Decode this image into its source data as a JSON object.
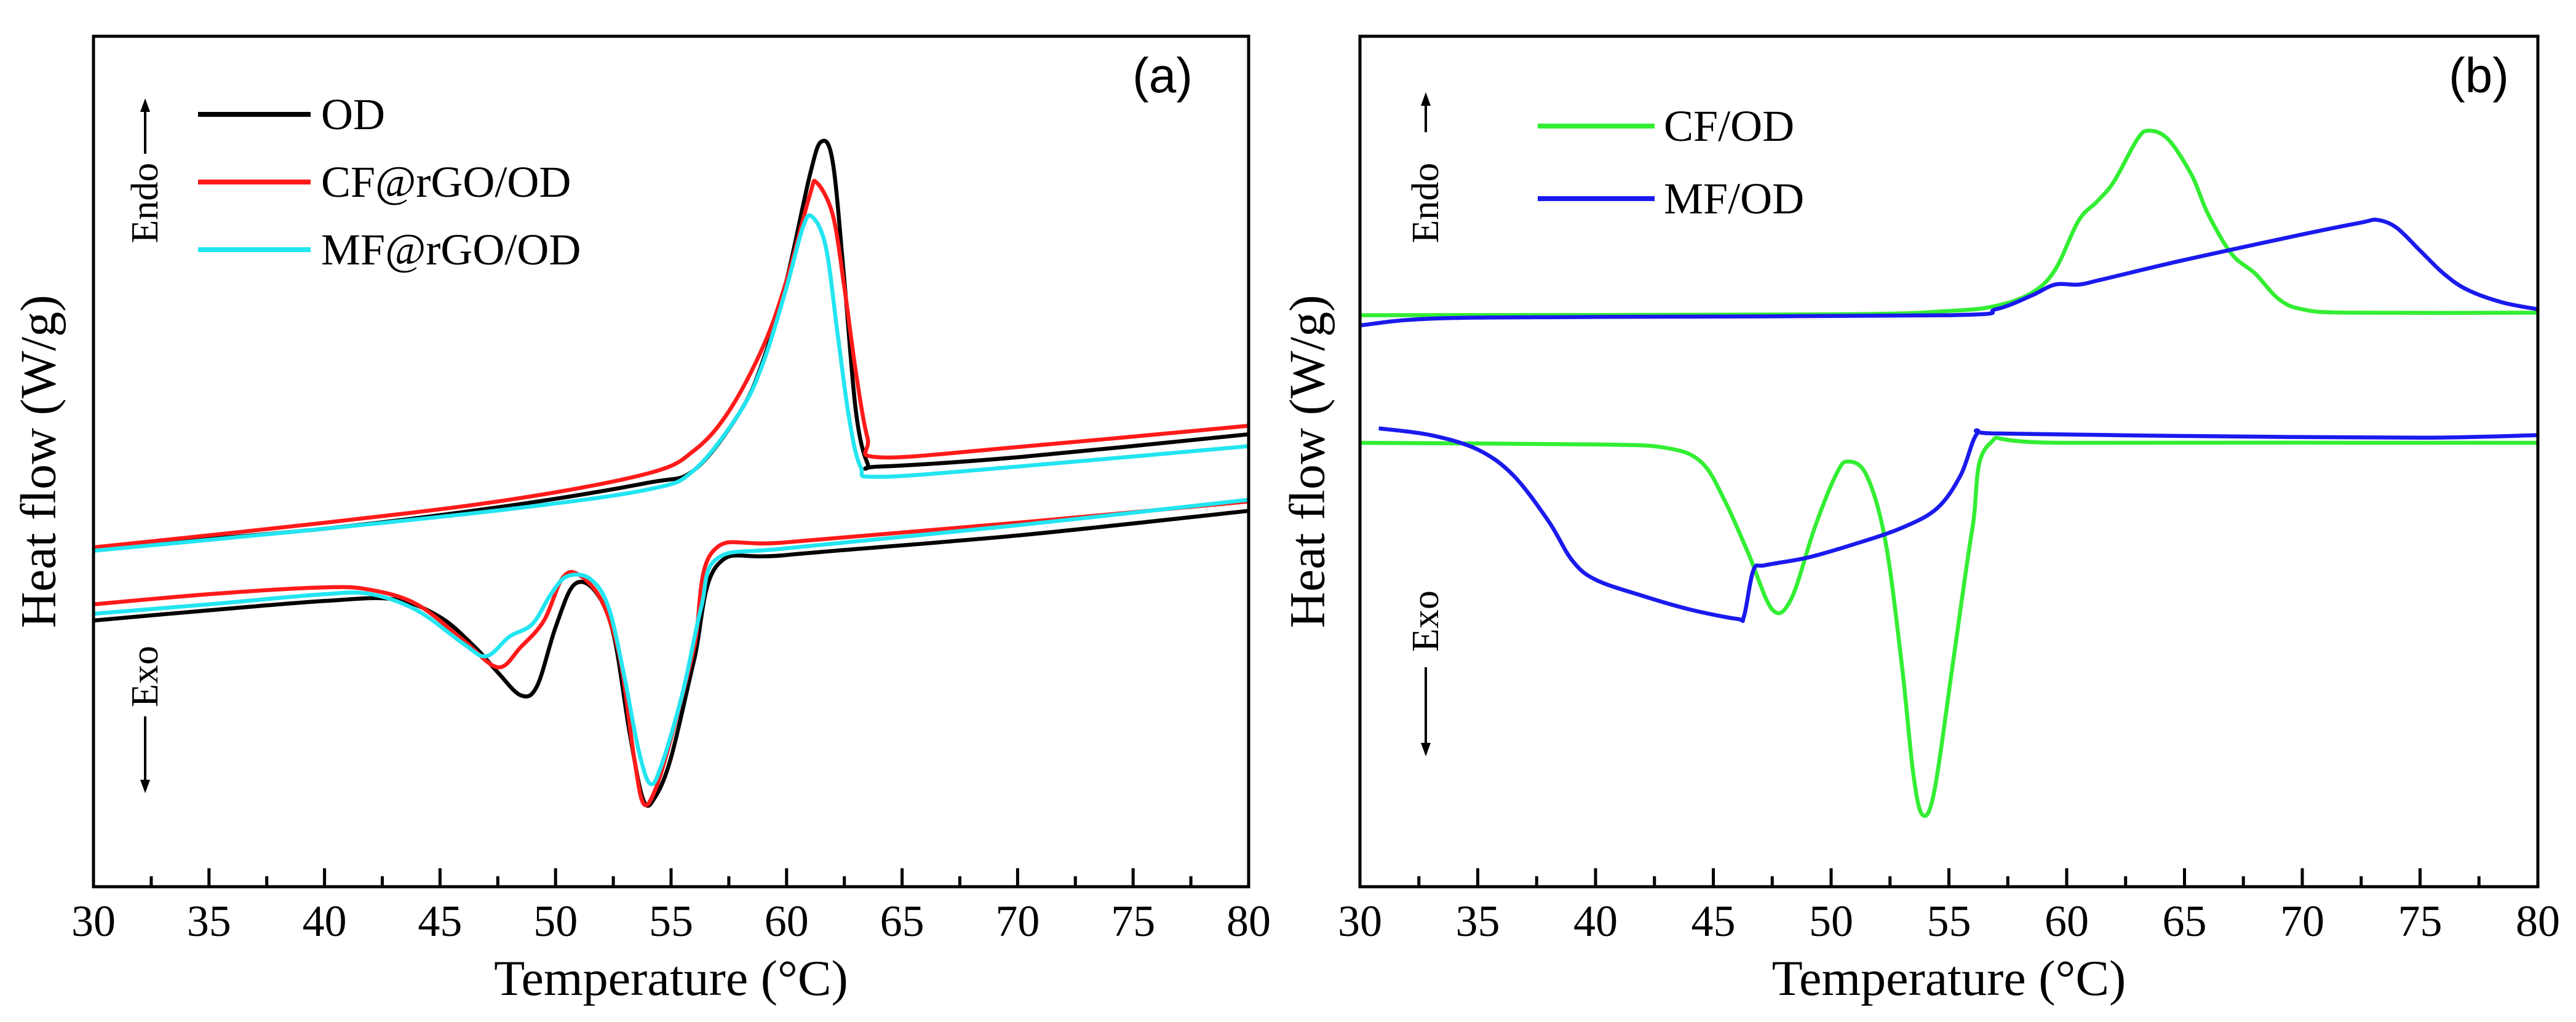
{
  "chart_data": [
    {
      "type": "line",
      "panel_label": "(a)",
      "xlabel": "Temperature (°C)",
      "ylabel": "Heat flow (W/g)",
      "xlim": [
        30,
        80
      ],
      "ylim": [
        0,
        100
      ],
      "y_units": "arbitrary (no y tick labels)",
      "x_ticks": [
        "30",
        "35",
        "40",
        "45",
        "50",
        "55",
        "60",
        "65",
        "70",
        "75",
        "80"
      ],
      "annotations": {
        "endo": "Endo",
        "exo": "Exo"
      },
      "legend_position": "top-left",
      "series": [
        {
          "name": "OD",
          "color": "#000000",
          "segments": [
            [
              [
                30,
                39.8
              ],
              [
                40,
                42.1
              ],
              [
                48,
                44.8
              ],
              [
                54,
                47.5
              ],
              [
                56,
                49
              ],
              [
                58,
                55.9
              ],
              [
                59,
                62
              ],
              [
                60,
                71.3
              ],
              [
                61,
                83.6
              ],
              [
                61.5,
                87.6
              ],
              [
                62,
                85.2
              ],
              [
                62.5,
                71.3
              ],
              [
                63,
                55.9
              ],
              [
                63.5,
                49.8
              ],
              [
                64,
                49.4
              ],
              [
                70,
                50.5
              ],
              [
                80,
                53.2
              ]
            ],
            [
              [
                30,
                31.3
              ],
              [
                35,
                32.5
              ],
              [
                40,
                33.6
              ],
              [
                43,
                33.8
              ],
              [
                45,
                31.7
              ],
              [
                46.5,
                28.2
              ],
              [
                47.5,
                25.2
              ],
              [
                48.5,
                22.5
              ],
              [
                49.2,
                23.6
              ],
              [
                50,
                30.5
              ],
              [
                50.8,
                35.5
              ],
              [
                51.7,
                34.8
              ],
              [
                52.5,
                29.8
              ],
              [
                53.2,
                18.2
              ],
              [
                53.8,
                10.2
              ],
              [
                54.3,
                10.5
              ],
              [
                55,
                15.2
              ],
              [
                56,
                26.7
              ],
              [
                57,
                37.8
              ],
              [
                60,
                39
              ],
              [
                70,
                41.3
              ],
              [
                80,
                44.2
              ]
            ]
          ]
        },
        {
          "name": "CF@rGO/OD",
          "color": "#ff1a1a",
          "segments": [
            [
              [
                30,
                39.9
              ],
              [
                40,
                42.8
              ],
              [
                48,
                45.5
              ],
              [
                54,
                48.6
              ],
              [
                56,
                51.3
              ],
              [
                57.5,
                55.9
              ],
              [
                59,
                63.6
              ],
              [
                60,
                71.3
              ],
              [
                61,
                81.3
              ],
              [
                61.3,
                82.8
              ],
              [
                62,
                79
              ],
              [
                62.5,
                70.5
              ],
              [
                63,
                60.5
              ],
              [
                63.5,
                52.8
              ],
              [
                64,
                50.5
              ],
              [
                70,
                51.7
              ],
              [
                80,
                54.2
              ]
            ],
            [
              [
                30,
                33.2
              ],
              [
                35,
                34.4
              ],
              [
                40,
                35.2
              ],
              [
                42,
                34.9
              ],
              [
                44,
                33.2
              ],
              [
                46,
                29
              ],
              [
                47.5,
                25.8
              ],
              [
                48.5,
                28.2
              ],
              [
                49.5,
                31.3
              ],
              [
                50.3,
                36.3
              ],
              [
                51,
                36.7
              ],
              [
                52,
                33.6
              ],
              [
                52.8,
                26.7
              ],
              [
                53.4,
                15.2
              ],
              [
                53.8,
                9.8
              ],
              [
                54.3,
                11.3
              ],
              [
                55,
                17.5
              ],
              [
                56,
                28.2
              ],
              [
                56.8,
                39.4
              ],
              [
                60,
                40.5
              ],
              [
                70,
                42.8
              ],
              [
                80,
                45.3
              ]
            ]
          ]
        },
        {
          "name": "MF@rGO/OD",
          "color": "#22e5f0",
          "segments": [
            [
              [
                30,
                39.5
              ],
              [
                40,
                42.1
              ],
              [
                48,
                44.4
              ],
              [
                54,
                46.7
              ],
              [
                56,
                49
              ],
              [
                58,
                55.9
              ],
              [
                59,
                61.7
              ],
              [
                60,
                70.5
              ],
              [
                60.7,
                77.5
              ],
              [
                61.1,
                78.8
              ],
              [
                61.7,
                75.2
              ],
              [
                62.2,
                65.2
              ],
              [
                62.7,
                55.2
              ],
              [
                63.2,
                49.4
              ],
              [
                64,
                48.2
              ],
              [
                70,
                49.4
              ],
              [
                80,
                51.8
              ]
            ],
            [
              [
                30,
                32.1
              ],
              [
                35,
                33.2
              ],
              [
                40,
                34.4
              ],
              [
                42,
                34.4
              ],
              [
                44,
                32.5
              ],
              [
                46,
                28.6
              ],
              [
                47,
                27.1
              ],
              [
                48,
                29.4
              ],
              [
                49,
                30.9
              ],
              [
                49.8,
                34.4
              ],
              [
                50.5,
                36.5
              ],
              [
                51.5,
                36.2
              ],
              [
                52.3,
                32.8
              ],
              [
                53,
                24.4
              ],
              [
                53.6,
                16
              ],
              [
                54.1,
                12.1
              ],
              [
                54.6,
                14.4
              ],
              [
                55.5,
                22.8
              ],
              [
                56.3,
                32.8
              ],
              [
                57,
                38.6
              ],
              [
                60,
                39.8
              ],
              [
                70,
                42.5
              ],
              [
                80,
                45.5
              ]
            ]
          ]
        }
      ]
    },
    {
      "type": "line",
      "panel_label": "(b)",
      "xlabel": "Temperature (°C)",
      "ylabel": "Heat flow (W/g)",
      "xlim": [
        30,
        80
      ],
      "ylim": [
        0,
        100
      ],
      "y_units": "arbitrary (no y tick labels)",
      "x_ticks": [
        "30",
        "35",
        "40",
        "45",
        "50",
        "55",
        "60",
        "65",
        "70",
        "75",
        "80"
      ],
      "annotations": {
        "endo": "Endo",
        "exo": "Exo"
      },
      "legend_position": "top-left",
      "series": [
        {
          "name": "CF/OD",
          "color": "#33ee33",
          "segments": [
            [
              [
                30,
                67.2
              ],
              [
                50,
                67.3
              ],
              [
                55,
                67.7
              ],
              [
                57,
                68.3
              ],
              [
                58.5,
                69.8
              ],
              [
                59.5,
                72.5
              ],
              [
                60.5,
                78.3
              ],
              [
                61.3,
                80.6
              ],
              [
                62,
                82.9
              ],
              [
                63,
                87.9
              ],
              [
                63.5,
                88.9
              ],
              [
                64.3,
                87.9
              ],
              [
                65.3,
                83.7
              ],
              [
                66,
                79.1
              ],
              [
                67,
                74.4
              ],
              [
                68,
                72.1
              ],
              [
                69,
                69.1
              ],
              [
                70,
                67.9
              ],
              [
                72,
                67.5
              ],
              [
                80,
                67.5
              ]
            ],
            [
              [
                30,
                52.2
              ],
              [
                40,
                52
              ],
              [
                43,
                51.6
              ],
              [
                44.5,
                49.9
              ],
              [
                45.5,
                45.3
              ],
              [
                46.5,
                39.1
              ],
              [
                47.5,
                32.6
              ],
              [
                48.3,
                33.8
              ],
              [
                49.3,
                42.2
              ],
              [
                50.2,
                48.4
              ],
              [
                50.7,
                50
              ],
              [
                51.5,
                48.4
              ],
              [
                52.3,
                40.7
              ],
              [
                53,
                26.1
              ],
              [
                53.5,
                13
              ],
              [
                53.9,
                8.4
              ],
              [
                54.4,
                11.5
              ],
              [
                55.2,
                26.9
              ],
              [
                56,
                42.2
              ],
              [
                56.7,
                52
              ],
              [
                60,
                52.2
              ],
              [
                80,
                52.2
              ]
            ]
          ]
        },
        {
          "name": "MF/OD",
          "color": "#1a1aee",
          "segments": [
            [
              [
                30,
                66
              ],
              [
                33,
                66.8
              ],
              [
                40,
                67
              ],
              [
                55,
                67.2
              ],
              [
                57,
                67.9
              ],
              [
                58.5,
                69.5
              ],
              [
                59.5,
                70.8
              ],
              [
                60.5,
                70.8
              ],
              [
                61.5,
                71.4
              ],
              [
                65,
                73.7
              ],
              [
                70,
                76.7
              ],
              [
                72.5,
                78.1
              ],
              [
                73.2,
                78.4
              ],
              [
                74,
                77.5
              ],
              [
                75,
                74.8
              ],
              [
                76,
                72.1
              ],
              [
                77,
                70.2
              ],
              [
                78.5,
                68.7
              ],
              [
                80,
                67.9
              ]
            ],
            [
              [
                30.8,
                53.9
              ],
              [
                33,
                53.1
              ],
              [
                35,
                51.4
              ],
              [
                36.5,
                48.4
              ],
              [
                38,
                43
              ],
              [
                39,
                38.4
              ],
              [
                40,
                36.1
              ],
              [
                42,
                34.2
              ],
              [
                44,
                32.6
              ],
              [
                46,
                31.5
              ],
              [
                46.3,
                31.8
              ],
              [
                46.7,
                37.2
              ],
              [
                47.2,
                37.8
              ],
              [
                49,
                38.7
              ],
              [
                51,
                40.3
              ],
              [
                53,
                42.2
              ],
              [
                54.5,
                44.5
              ],
              [
                55.5,
                48.4
              ],
              [
                56.2,
                53.3
              ],
              [
                57,
                53.3
              ],
              [
                65,
                53
              ],
              [
                75,
                52.8
              ],
              [
                80,
                53.1
              ]
            ]
          ]
        }
      ]
    }
  ]
}
